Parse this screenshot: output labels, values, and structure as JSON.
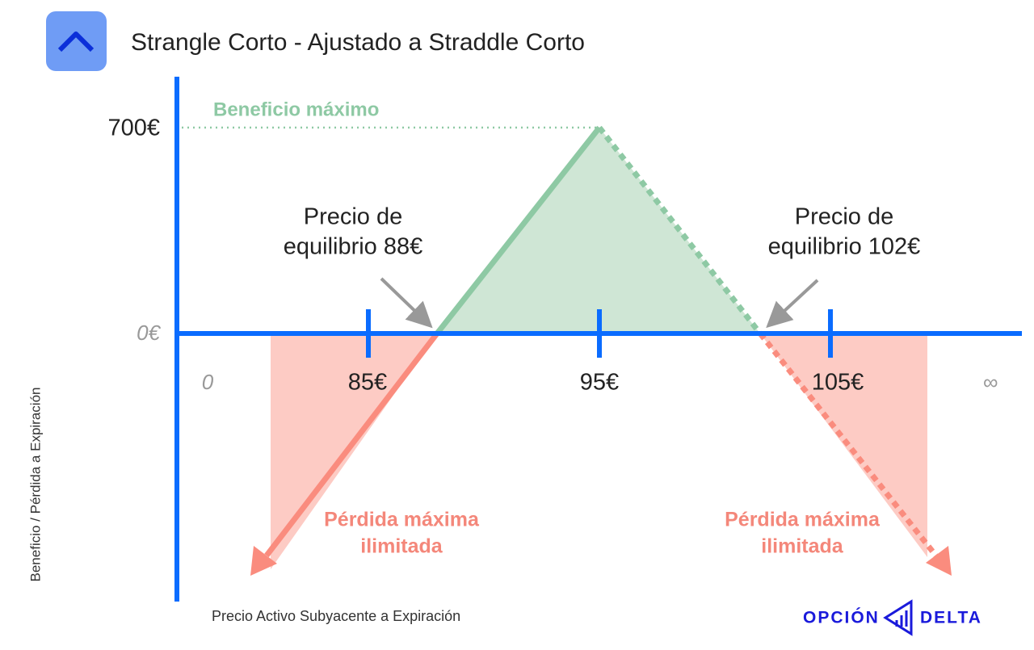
{
  "header": {
    "title": "Strangle Corto - Ajustado a Straddle Corto"
  },
  "axes": {
    "y_label": "Beneficio / Pérdida a Expiración",
    "x_label": "Precio Activo Subyacente a Expiración"
  },
  "y_ticks": [
    "700€",
    "0€"
  ],
  "x_ticks": [
    "0",
    "85€",
    "95€",
    "105€",
    "∞"
  ],
  "annotations": {
    "max_profit": "Beneficio máximo",
    "breakeven_low": [
      "Precio de",
      "equilibrio 88€"
    ],
    "breakeven_high": [
      "Precio de",
      "equilibrio 102€"
    ],
    "max_loss_left": [
      "Pérdida máxima",
      "ilimitada"
    ],
    "max_loss_right": [
      "Pérdida máxima",
      "ilimitada"
    ]
  },
  "logo": [
    "OPCIÓN",
    "DELTA"
  ]
}
